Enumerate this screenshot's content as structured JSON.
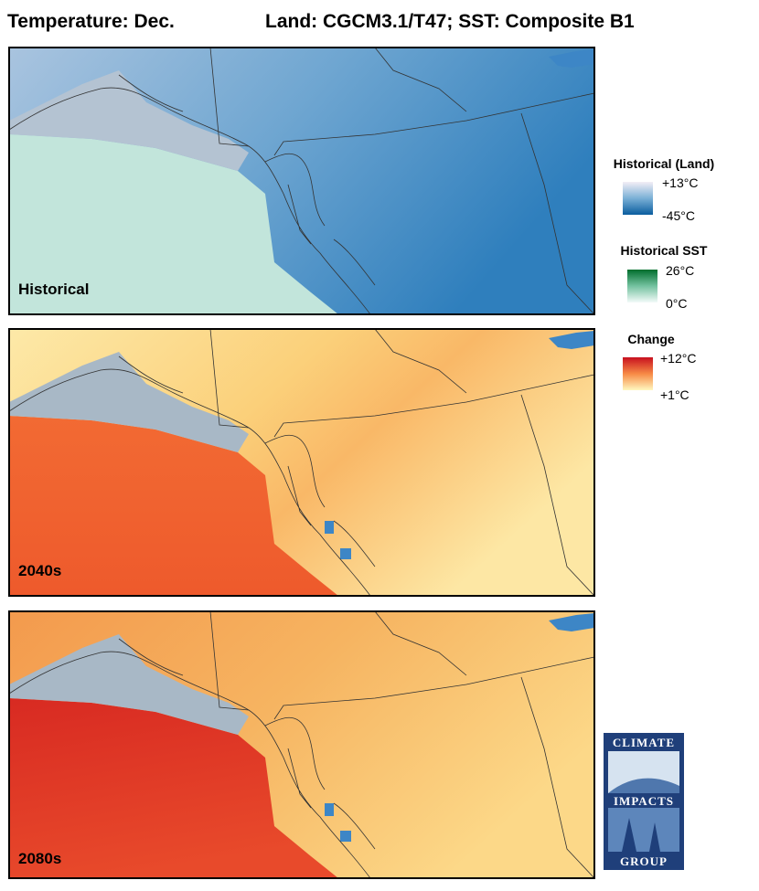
{
  "header": {
    "title": "Temperature: Dec.",
    "subtitle": "Land: CGCM3.1/T47; SST: Composite B1"
  },
  "panels": [
    {
      "label": "Historical"
    },
    {
      "label": "2040s"
    },
    {
      "label": "2080s"
    }
  ],
  "legends": [
    {
      "title": "Historical (Land)",
      "max": "+13°C",
      "min": "-45°C"
    },
    {
      "title": "Historical SST",
      "max": "26°C",
      "min": "0°C"
    },
    {
      "title": "Change",
      "max": "+12°C",
      "min": "+1°C"
    }
  ],
  "logo": {
    "lines": [
      "CLIMATE",
      "IMPACTS",
      "GROUP"
    ]
  }
}
